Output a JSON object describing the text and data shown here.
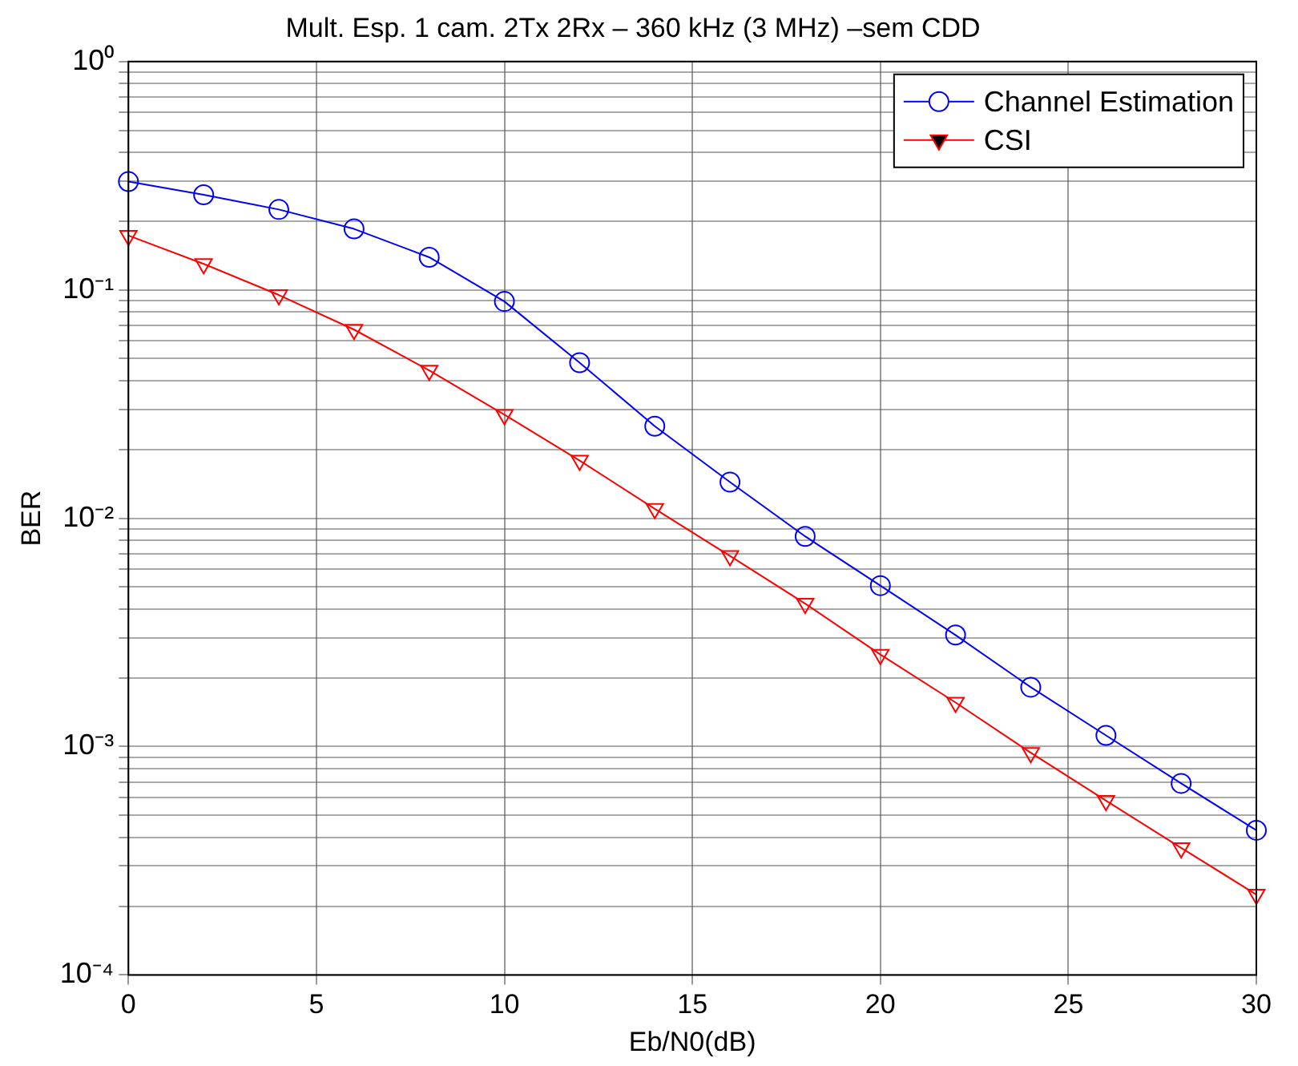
{
  "chart_data": {
    "type": "line",
    "title": "Mult. Esp. 1 cam. 2Tx 2Rx – 360 kHz (3 MHz) –sem CDD",
    "xlabel": "Eb/N0(dB)",
    "ylabel": "BER",
    "x": [
      0,
      2,
      4,
      6,
      8,
      10,
      12,
      14,
      16,
      18,
      20,
      22,
      24,
      26,
      28,
      30
    ],
    "series": [
      {
        "name": "Channel Estimation",
        "color": "#0000ff",
        "marker": "circle",
        "values": [
          0.298,
          0.261,
          0.225,
          0.185,
          0.139,
          0.089,
          0.048,
          0.0253,
          0.0144,
          0.00833,
          0.00507,
          0.00308,
          0.00182,
          0.00112,
          0.00069,
          0.00043
        ]
      },
      {
        "name": "CSI",
        "color": "#ff0000",
        "marker": "triangle",
        "values": [
          0.173,
          0.13,
          0.095,
          0.067,
          0.0444,
          0.0284,
          0.0179,
          0.011,
          0.00684,
          0.00423,
          0.00253,
          0.00156,
          0.00094,
          0.00058,
          0.00036,
          0.000225
        ]
      }
    ],
    "xlim": [
      0,
      30
    ],
    "xticks": [
      0,
      5,
      10,
      15,
      20,
      25,
      30
    ],
    "ylim": [
      0.0001,
      1
    ],
    "yticks": [
      {
        "value": 0.0001,
        "label": "10⁻⁴"
      },
      {
        "value": 0.0002,
        "label": null
      },
      {
        "value": 0.0003,
        "label": null
      },
      {
        "value": 0.0004,
        "label": null
      },
      {
        "value": 0.0005,
        "label": null
      },
      {
        "value": 0.0006,
        "label": null
      },
      {
        "value": 0.0007,
        "label": null
      },
      {
        "value": 0.0008,
        "label": null
      },
      {
        "value": 0.0009,
        "label": null
      },
      {
        "value": 0.001,
        "label": "10⁻³"
      },
      {
        "value": 0.002,
        "label": null
      },
      {
        "value": 0.003,
        "label": null
      },
      {
        "value": 0.004,
        "label": null
      },
      {
        "value": 0.005,
        "label": null
      },
      {
        "value": 0.006,
        "label": null
      },
      {
        "value": 0.007,
        "label": null
      },
      {
        "value": 0.008,
        "label": null
      },
      {
        "value": 0.009,
        "label": null
      },
      {
        "value": 0.01,
        "label": "10⁻²"
      },
      {
        "value": 0.02,
        "label": null
      },
      {
        "value": 0.03,
        "label": null
      },
      {
        "value": 0.04,
        "label": null
      },
      {
        "value": 0.05,
        "label": null
      },
      {
        "value": 0.06,
        "label": null
      },
      {
        "value": 0.07,
        "label": null
      },
      {
        "value": 0.08,
        "label": null
      },
      {
        "value": 0.09,
        "label": null
      },
      {
        "value": 0.1,
        "label": "10⁻¹"
      },
      {
        "value": 0.2,
        "label": null
      },
      {
        "value": 0.3,
        "label": null
      },
      {
        "value": 0.4,
        "label": null
      },
      {
        "value": 0.5,
        "label": null
      },
      {
        "value": 0.6,
        "label": null
      },
      {
        "value": 0.7,
        "label": null
      },
      {
        "value": 0.8,
        "label": null
      },
      {
        "value": 0.9,
        "label": null
      },
      {
        "value": 1,
        "label": "10⁰"
      }
    ],
    "log": "y",
    "grid": true,
    "legend": "top right",
    "line_style": "solid"
  }
}
